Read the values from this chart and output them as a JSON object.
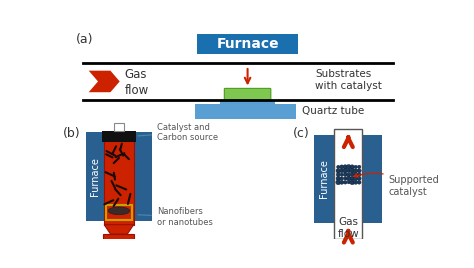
{
  "bg_color": "#ffffff",
  "furnace_box_color": "#1a6faf",
  "quartz_tube_color": "#5a9fd4",
  "substrate_color": "#7ec850",
  "substrate_holder_color": "#5a9fd4",
  "red_color": "#cc2200",
  "black_color": "#111111",
  "label_color": "#333333",
  "annotation_color": "#555555",
  "dark_blue": "#2a6090",
  "dark_navy": "#1a3a5c",
  "title_a": "(a)",
  "title_b": "(b)",
  "title_c": "(c)",
  "label_furnace": "Furnace",
  "label_gas_flow": "Gas\nflow",
  "label_substrates": "Substrates\nwith catalyst",
  "label_quartz": "Quartz tube",
  "label_furnace_b": "Furnace",
  "label_catalyst": "Catalyst and\nCarbon source",
  "label_nanofibers": "Nanofibers\nor nanotubes",
  "label_furnace_c": "Furnace",
  "label_supported": "Supported\ncatalyst",
  "label_gas_flow_c": "Gas\nflow"
}
